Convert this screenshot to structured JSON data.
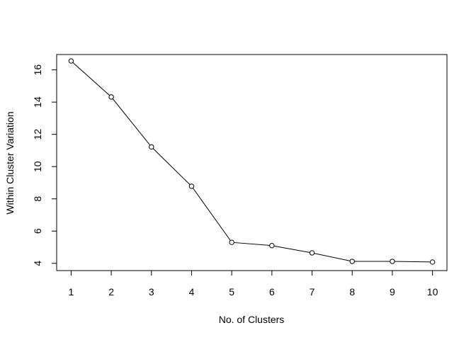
{
  "chart_data": {
    "type": "line",
    "markers": "open-circle",
    "xlabel": "No. of Clusters",
    "ylabel": "Within Cluster Variation",
    "x": [
      1,
      2,
      3,
      4,
      5,
      6,
      7,
      8,
      9,
      10
    ],
    "y": [
      16.55,
      14.32,
      11.22,
      8.78,
      5.3,
      5.1,
      4.65,
      4.12,
      4.12,
      4.08
    ],
    "xlim": [
      0.64,
      10.36
    ],
    "ylim": [
      3.55,
      16.95
    ],
    "xticks": [
      1,
      2,
      3,
      4,
      5,
      6,
      7,
      8,
      9,
      10
    ],
    "yticks": [
      4,
      6,
      8,
      10,
      12,
      14,
      16
    ],
    "grid": false,
    "colors": {
      "line": "#000000",
      "marker_stroke": "#000000",
      "marker_fill": "#ffffff",
      "box": "#000000"
    }
  }
}
